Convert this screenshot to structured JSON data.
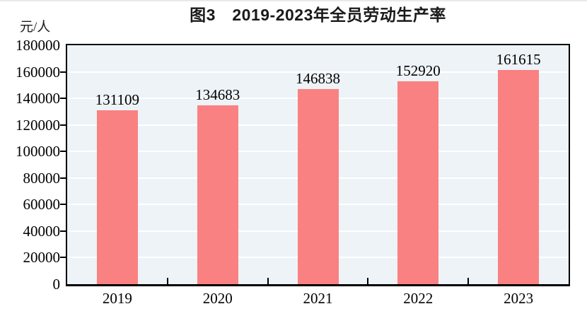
{
  "chart_data": {
    "type": "bar",
    "title": "图3　2019-2023年全员劳动生产率",
    "unit_label": "元/人",
    "categories": [
      "2019",
      "2020",
      "2021",
      "2022",
      "2023"
    ],
    "values": [
      131109,
      134683,
      146838,
      152920,
      161615
    ],
    "ylim": [
      0,
      180000
    ],
    "ytick_interval": 20000,
    "ytick_labels": [
      "0",
      "20000",
      "40000",
      "60000",
      "80000",
      "100000",
      "120000",
      "140000",
      "160000",
      "180000"
    ],
    "data_labels": true,
    "grid": true,
    "legend_position": "none",
    "bar_color": "#fa8181",
    "plot_bg_color": "#edf3f7",
    "grid_color": "#ffffff",
    "axis_frame_color": "#000000",
    "text_color": "#1a1a1a"
  }
}
